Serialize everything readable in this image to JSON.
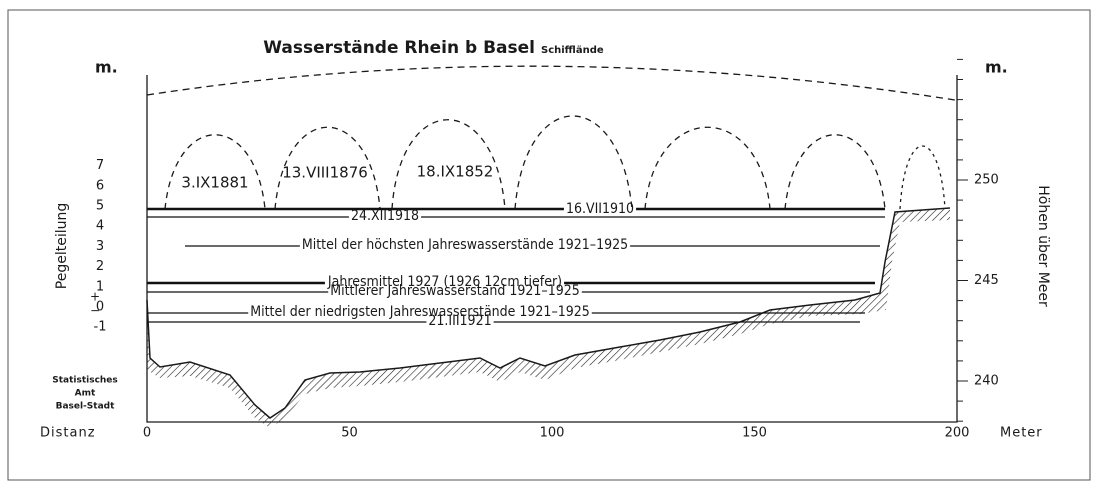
{
  "title": "Wasserstände Rhein b Basel",
  "subtitle": "Schifflände",
  "left_axis": {
    "unit": "m.",
    "label": "Pegelteilung",
    "ticks": [
      7,
      6,
      5,
      4,
      3,
      2,
      1,
      0,
      -1
    ],
    "signs": [
      "+",
      "−"
    ]
  },
  "right_axis": {
    "unit": "m.",
    "label": "Höhen über Meer",
    "ticks": [
      250,
      245,
      240
    ]
  },
  "x_axis": {
    "label": "Distanz",
    "unit": "Meter",
    "ticks": [
      0,
      50,
      100,
      150,
      200
    ]
  },
  "levels": [
    "16.VII1910",
    "24.XII1918",
    "Mittel der höchsten Jahreswasserstände 1921–1925",
    "Jahresmittel 1927 (1926 12cm tiefer)",
    "Mittlerer Jahreswasserstand 1921–1925",
    "Mittel der niedrigsten Jahreswasserstände 1921–1925",
    "21.III1921"
  ],
  "floods": [
    "3.IX1881",
    "13.VIII1876",
    "18.IX1852"
  ],
  "credit": [
    "Statistisches",
    "Amt",
    "Basel-Stadt"
  ]
}
